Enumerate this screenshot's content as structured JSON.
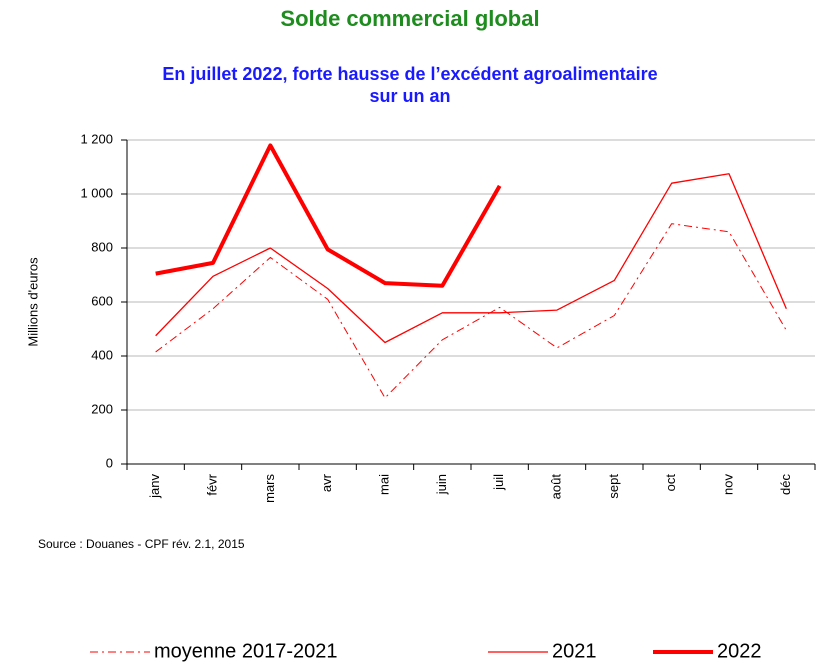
{
  "chart_data": {
    "type": "line",
    "title": "Solde commercial global",
    "subtitle": [
      "En juillet 2022, forte hausse de l’excédent agroalimentaire",
      "sur un an"
    ],
    "y_label": "Millions d'euros",
    "source": "Source : Douanes - CPF  rév. 2.1, 2015",
    "categories": [
      "janv",
      "févr",
      "mars",
      "avr",
      "mai",
      "juin",
      "juil",
      "août",
      "sept",
      "oct",
      "nov",
      "déc"
    ],
    "series": [
      {
        "name": "moyenne 2017-2021",
        "color": "#ff0000",
        "style": "dashdot",
        "width": 1,
        "values": [
          415,
          575,
          765,
          610,
          245,
          460,
          580,
          430,
          550,
          890,
          860,
          495
        ]
      },
      {
        "name": "2021",
        "color": "#ff0000",
        "style": "solid",
        "width": 1.3,
        "values": [
          475,
          695,
          800,
          650,
          450,
          560,
          560,
          570,
          680,
          1040,
          1075,
          575
        ]
      },
      {
        "name": "2022",
        "color": "#ff0000",
        "style": "solid",
        "width": 4,
        "values": [
          705,
          745,
          1180,
          795,
          670,
          660,
          1030,
          null,
          null,
          null,
          null,
          null
        ]
      }
    ],
    "ylim": [
      0,
      1200
    ],
    "yticks": [
      0,
      200,
      400,
      600,
      800,
      {
        "value": 1000,
        "label": "1 000"
      },
      {
        "value": 1200,
        "label": "1 200"
      }
    ],
    "grid": true,
    "legend": "bottom"
  }
}
